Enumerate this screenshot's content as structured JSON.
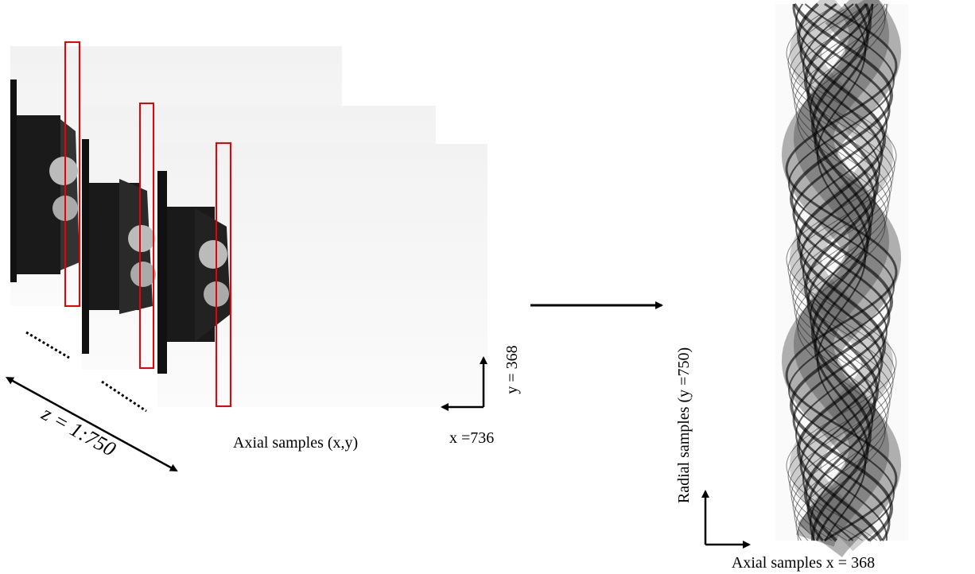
{
  "labels": {
    "z_range": "z = 1:750",
    "axial_xy": "Axial samples (x,y)",
    "y_size": "y = 368",
    "x_size": "x =736",
    "radial": "Radial samples (y =750)",
    "axial_x": "Axial samples x = 368"
  }
}
